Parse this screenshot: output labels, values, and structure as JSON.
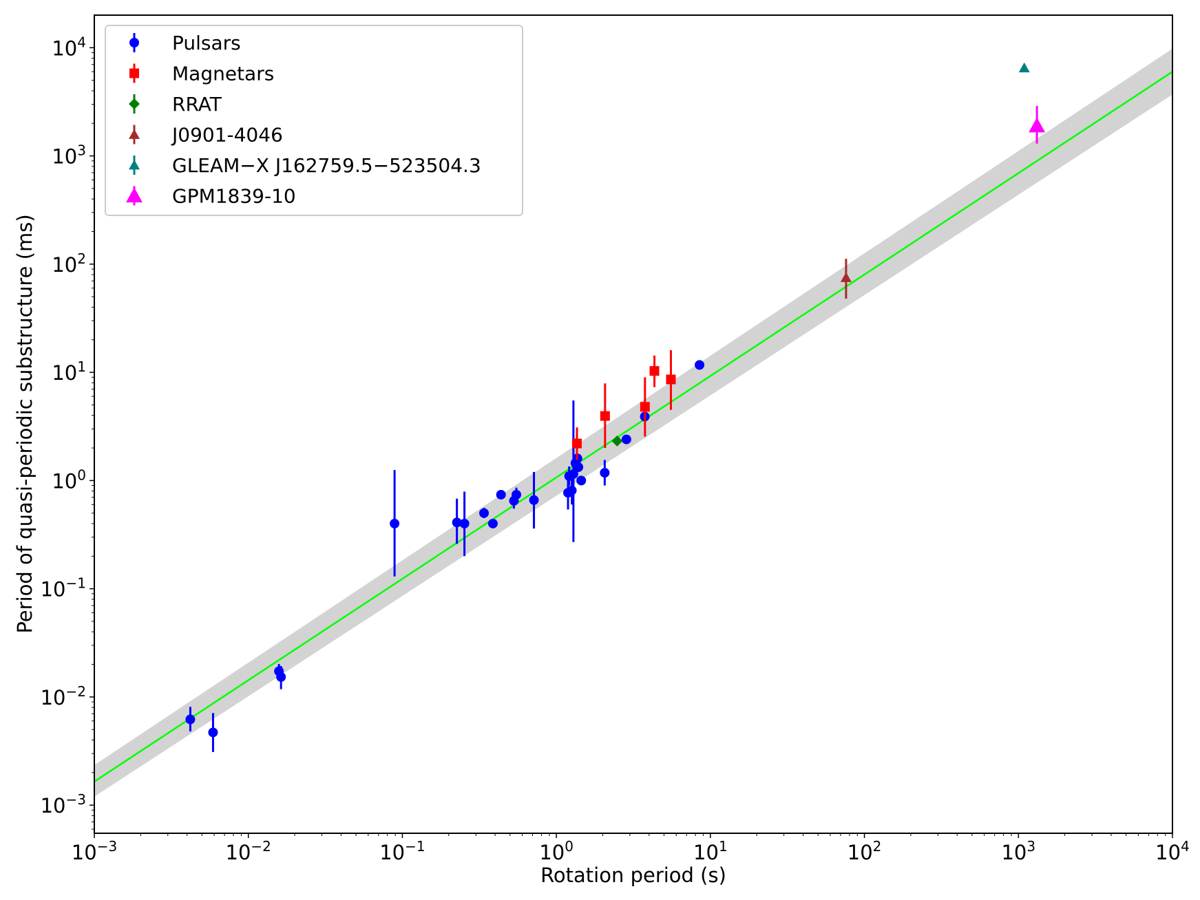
{
  "chart_data": {
    "type": "scatter",
    "title": "",
    "xlabel": "Rotation period (s)",
    "ylabel": "Period of quasi-periodic substructure (ms)",
    "xscale": "log",
    "yscale": "log",
    "xlim": [
      0.001,
      10000
    ],
    "ylim": [
      0.00055,
      20000
    ],
    "x_ticks": [
      {
        "base": "10",
        "exp": "−3",
        "value": 0.001
      },
      {
        "base": "10",
        "exp": "−2",
        "value": 0.01
      },
      {
        "base": "10",
        "exp": "−1",
        "value": 0.1
      },
      {
        "base": "10",
        "exp": "0",
        "value": 1
      },
      {
        "base": "10",
        "exp": "1",
        "value": 10
      },
      {
        "base": "10",
        "exp": "2",
        "value": 100
      },
      {
        "base": "10",
        "exp": "3",
        "value": 1000
      },
      {
        "base": "10",
        "exp": "4",
        "value": 10000
      }
    ],
    "y_ticks": [
      {
        "base": "10",
        "exp": "−3",
        "value": 0.001
      },
      {
        "base": "10",
        "exp": "−2",
        "value": 0.01
      },
      {
        "base": "10",
        "exp": "−1",
        "value": 0.1
      },
      {
        "base": "10",
        "exp": "0",
        "value": 1
      },
      {
        "base": "10",
        "exp": "1",
        "value": 10
      },
      {
        "base": "10",
        "exp": "2",
        "value": 100
      },
      {
        "base": "10",
        "exp": "3",
        "value": 1000
      },
      {
        "base": "10",
        "exp": "4",
        "value": 10000
      }
    ],
    "legend_position": "top-left",
    "grid": false,
    "fit": {
      "color": "#00ff00",
      "band_color": "#d3d3d3",
      "line": [
        [
          0.001,
          0.00165
        ],
        [
          10000,
          6000
        ]
      ],
      "band_upper": [
        [
          0.001,
          0.00235
        ],
        [
          10000,
          9800
        ]
      ],
      "band_lower": [
        [
          0.001,
          0.0012
        ],
        [
          10000,
          3700
        ]
      ]
    },
    "series": [
      {
        "name": "Pulsars",
        "marker": "circle",
        "color": "#0000ff",
        "points": [
          {
            "x": 0.0042,
            "y": 0.0062,
            "ylo": 0.0048,
            "yhi": 0.0081
          },
          {
            "x": 0.0059,
            "y": 0.0047,
            "ylo": 0.0031,
            "yhi": 0.0071
          },
          {
            "x": 0.0158,
            "y": 0.0173,
            "ylo": 0.0147,
            "yhi": 0.0202
          },
          {
            "x": 0.0163,
            "y": 0.0153,
            "ylo": 0.0118,
            "yhi": 0.0193
          },
          {
            "x": 0.089,
            "y": 0.4,
            "ylo": 0.13,
            "yhi": 1.25
          },
          {
            "x": 0.226,
            "y": 0.41,
            "ylo": 0.26,
            "yhi": 0.68
          },
          {
            "x": 0.253,
            "y": 0.4,
            "ylo": 0.2,
            "yhi": 0.79
          },
          {
            "x": 0.339,
            "y": 0.5,
            "ylo": 0.45,
            "yhi": 0.56
          },
          {
            "x": 0.387,
            "y": 0.4,
            "ylo": 0.38,
            "yhi": 0.42
          },
          {
            "x": 0.437,
            "y": 0.74,
            "ylo": 0.71,
            "yhi": 0.78
          },
          {
            "x": 0.53,
            "y": 0.65,
            "ylo": 0.55,
            "yhi": 0.75
          },
          {
            "x": 0.55,
            "y": 0.74,
            "ylo": 0.64,
            "yhi": 0.86
          },
          {
            "x": 0.715,
            "y": 0.66,
            "ylo": 0.36,
            "yhi": 1.2
          },
          {
            "x": 1.19,
            "y": 0.77,
            "ylo": 0.54,
            "yhi": 1.05
          },
          {
            "x": 1.21,
            "y": 1.1,
            "ylo": 0.9,
            "yhi": 1.35
          },
          {
            "x": 1.26,
            "y": 0.81,
            "ylo": 0.6,
            "yhi": 1.1
          },
          {
            "x": 1.29,
            "y": 1.15,
            "ylo": 0.27,
            "yhi": 5.5
          },
          {
            "x": 1.33,
            "y": 1.45,
            "ylo": 1.2,
            "yhi": 1.75
          },
          {
            "x": 1.37,
            "y": 1.6,
            "ylo": 1.45,
            "yhi": 1.75
          },
          {
            "x": 1.39,
            "y": 1.33,
            "ylo": 1.2,
            "yhi": 1.48
          },
          {
            "x": 1.45,
            "y": 1.0,
            "ylo": 0.95,
            "yhi": 1.05
          },
          {
            "x": 2.06,
            "y": 1.18,
            "ylo": 0.9,
            "yhi": 1.55
          },
          {
            "x": 2.85,
            "y": 2.4,
            "ylo": 2.3,
            "yhi": 2.5
          },
          {
            "x": 3.75,
            "y": 3.9,
            "ylo": 3.75,
            "yhi": 4.05
          },
          {
            "x": 8.5,
            "y": 11.7,
            "ylo": 11.4,
            "yhi": 12.0
          }
        ]
      },
      {
        "name": "Magnetars",
        "marker": "square",
        "color": "#ff0000",
        "points": [
          {
            "x": 1.36,
            "y": 2.2,
            "ylo": 1.55,
            "yhi": 3.1
          },
          {
            "x": 2.07,
            "y": 3.95,
            "ylo": 2.0,
            "yhi": 7.9
          },
          {
            "x": 3.76,
            "y": 4.8,
            "ylo": 2.55,
            "yhi": 9.0
          },
          {
            "x": 4.33,
            "y": 10.3,
            "ylo": 7.3,
            "yhi": 14.3
          },
          {
            "x": 5.54,
            "y": 8.6,
            "ylo": 4.5,
            "yhi": 16.0
          }
        ]
      },
      {
        "name": "RRAT",
        "marker": "diamond",
        "color": "#008000",
        "points": [
          {
            "x": 2.48,
            "y": 2.32,
            "ylo": 2.22,
            "yhi": 2.42
          }
        ]
      },
      {
        "name": "J0901-4046",
        "marker": "triangle",
        "color": "#a52a2a",
        "points": [
          {
            "x": 76,
            "y": 75,
            "ylo": 48,
            "yhi": 112
          }
        ]
      },
      {
        "name": "GLEAM−X J162759.5−523504.3",
        "marker": "triangle",
        "color": "#008080",
        "points": [
          {
            "x": 1091,
            "y": 6500,
            "ylo": 6500,
            "yhi": 6500
          }
        ]
      },
      {
        "name": "GPM1839-10",
        "marker": "triangle-large",
        "color": "#ff00ff",
        "points": [
          {
            "x": 1318,
            "y": 1900,
            "ylo": 1300,
            "yhi": 2900
          }
        ]
      }
    ]
  }
}
